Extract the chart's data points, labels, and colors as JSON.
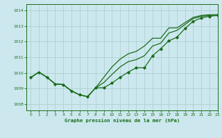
{
  "title": "Graphe pression niveau de la mer (hPa)",
  "bg_color": "#cce8ee",
  "grid_color": "#a8cccc",
  "line_color": "#1a6b1a",
  "xlim": [
    -0.5,
    23
  ],
  "ylim": [
    1007.6,
    1014.4
  ],
  "yticks": [
    1008,
    1009,
    1010,
    1011,
    1012,
    1013,
    1014
  ],
  "xticks": [
    0,
    1,
    2,
    3,
    4,
    5,
    6,
    7,
    8,
    9,
    10,
    11,
    12,
    13,
    14,
    15,
    16,
    17,
    18,
    19,
    20,
    21,
    22,
    23
  ],
  "series1": [
    1009.7,
    1010.05,
    1009.72,
    1009.3,
    1009.25,
    1008.85,
    1008.6,
    1008.48,
    1009.05,
    1009.05,
    1009.35,
    1009.72,
    1010.05,
    1010.33,
    1010.33,
    1011.1,
    1011.55,
    1012.05,
    1012.28,
    1012.85,
    1013.3,
    1013.52,
    1013.62,
    1013.68
  ],
  "series2": [
    1009.7,
    1010.05,
    1009.72,
    1009.3,
    1009.25,
    1008.85,
    1008.6,
    1008.48,
    1009.05,
    1009.38,
    1009.9,
    1010.38,
    1010.72,
    1010.85,
    1011.1,
    1011.72,
    1011.9,
    1012.55,
    1012.72,
    1013.1,
    1013.48,
    1013.62,
    1013.68,
    1013.72
  ],
  "series3": [
    1009.7,
    1010.05,
    1009.72,
    1009.3,
    1009.25,
    1008.85,
    1008.6,
    1008.48,
    1009.05,
    1009.72,
    1010.38,
    1010.88,
    1011.22,
    1011.38,
    1011.72,
    1012.22,
    1012.22,
    1012.88,
    1012.88,
    1013.22,
    1013.55,
    1013.68,
    1013.72,
    1013.72
  ],
  "dots_x": [
    0,
    1,
    2,
    3,
    4,
    5,
    6,
    7,
    8,
    9,
    10,
    11,
    12,
    13,
    14,
    15,
    16,
    17,
    18,
    19,
    20,
    21,
    22,
    23
  ],
  "dots_y": [
    1009.7,
    1010.05,
    1009.72,
    1009.3,
    1009.25,
    1008.85,
    1008.6,
    1008.48,
    1009.05,
    1009.05,
    1009.35,
    1009.72,
    1010.05,
    1010.33,
    1010.33,
    1011.1,
    1011.55,
    1012.05,
    1012.28,
    1012.85,
    1013.3,
    1013.52,
    1013.62,
    1013.68
  ],
  "figsize": [
    3.2,
    2.0
  ],
  "dpi": 100
}
